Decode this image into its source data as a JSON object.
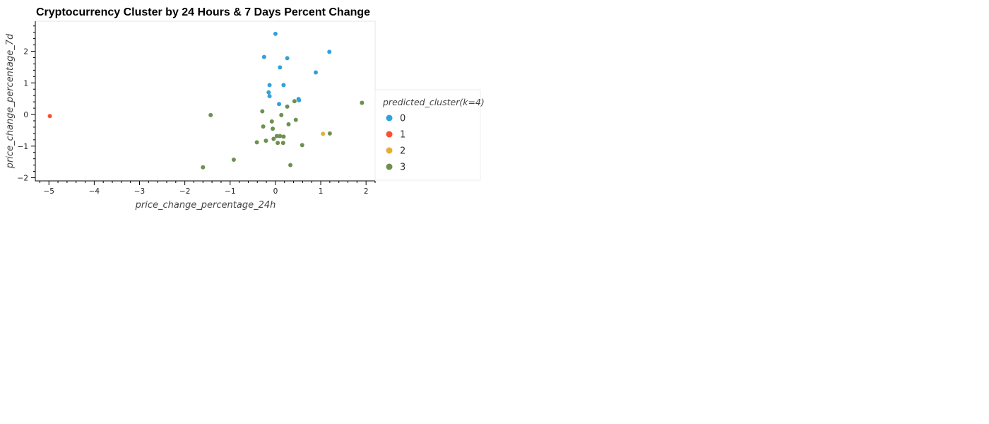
{
  "chart_data": {
    "type": "scatter",
    "title": "Cryptocurrency Cluster by 24 Hours & 7 Days Percent Change",
    "xlabel": "price_change_percentage_24h",
    "ylabel": "price_change_percentage_7d",
    "xlim": [
      -5.3,
      2.2
    ],
    "ylim": [
      -2.1,
      2.95
    ],
    "xticks": [
      -5,
      -4,
      -3,
      -2,
      -1,
      0,
      1,
      2
    ],
    "yticks": [
      -2,
      -1,
      0,
      1,
      2
    ],
    "grid": false,
    "legend": {
      "title": "predicted_cluster(k=4)",
      "position": "right"
    },
    "series": [
      {
        "name": "0",
        "color": "#30a2da",
        "points": [
          {
            "x": 0.0,
            "y": 2.55
          },
          {
            "x": 1.19,
            "y": 1.98
          },
          {
            "x": -0.25,
            "y": 1.82
          },
          {
            "x": 0.26,
            "y": 1.78
          },
          {
            "x": 0.1,
            "y": 1.49
          },
          {
            "x": 0.89,
            "y": 1.33
          },
          {
            "x": -0.13,
            "y": 0.93
          },
          {
            "x": 0.18,
            "y": 0.93
          },
          {
            "x": -0.15,
            "y": 0.7
          },
          {
            "x": -0.13,
            "y": 0.58
          },
          {
            "x": 0.51,
            "y": 0.49
          },
          {
            "x": 0.52,
            "y": 0.45
          },
          {
            "x": 0.08,
            "y": 0.33
          }
        ]
      },
      {
        "name": "1",
        "color": "#fc4f30",
        "points": [
          {
            "x": -4.98,
            "y": -0.05
          }
        ]
      },
      {
        "name": "2",
        "color": "#e5ae38",
        "points": [
          {
            "x": 1.05,
            "y": -0.61
          }
        ]
      },
      {
        "name": "3",
        "color": "#6d904f",
        "points": [
          {
            "x": -1.43,
            "y": -0.02
          },
          {
            "x": 1.91,
            "y": 0.37
          },
          {
            "x": 0.42,
            "y": 0.42
          },
          {
            "x": 0.26,
            "y": 0.25
          },
          {
            "x": -0.29,
            "y": 0.1
          },
          {
            "x": 0.13,
            "y": -0.02
          },
          {
            "x": 0.45,
            "y": -0.17
          },
          {
            "x": -0.08,
            "y": -0.22
          },
          {
            "x": 0.29,
            "y": -0.31
          },
          {
            "x": -0.27,
            "y": -0.38
          },
          {
            "x": -0.06,
            "y": -0.45
          },
          {
            "x": 1.2,
            "y": -0.6
          },
          {
            "x": 0.03,
            "y": -0.68
          },
          {
            "x": 0.1,
            "y": -0.68
          },
          {
            "x": 0.18,
            "y": -0.7
          },
          {
            "x": -0.04,
            "y": -0.77
          },
          {
            "x": -0.21,
            "y": -0.83
          },
          {
            "x": -0.41,
            "y": -0.88
          },
          {
            "x": 0.05,
            "y": -0.9
          },
          {
            "x": 0.17,
            "y": -0.9
          },
          {
            "x": 0.59,
            "y": -0.97
          },
          {
            "x": -0.92,
            "y": -1.43
          },
          {
            "x": 0.33,
            "y": -1.6
          },
          {
            "x": -1.6,
            "y": -1.67
          }
        ]
      }
    ]
  }
}
